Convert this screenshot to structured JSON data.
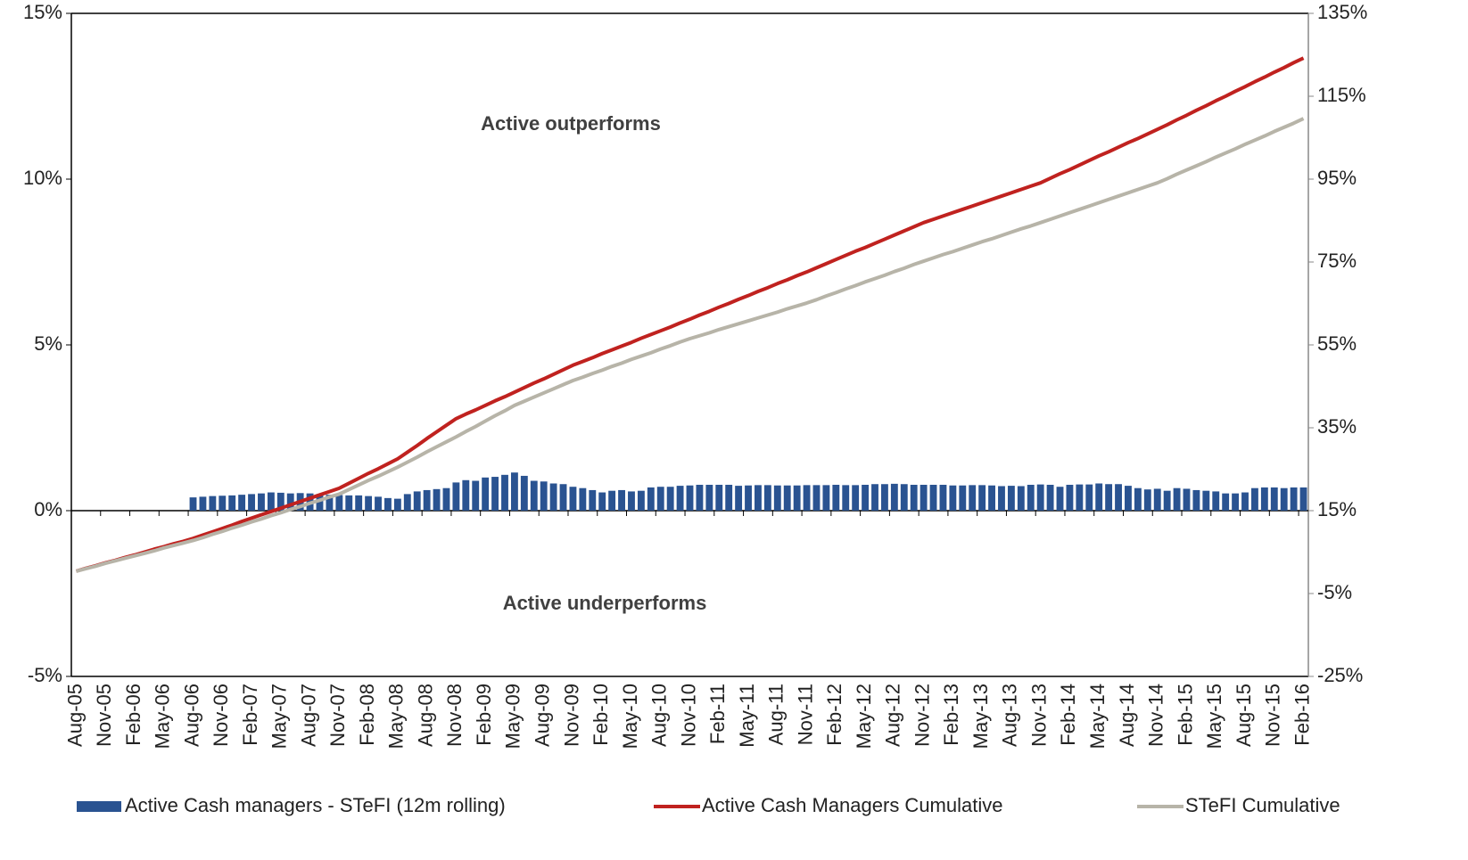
{
  "chart_data": {
    "type": "bar_line",
    "categories": [
      "Aug-05",
      null,
      null,
      "Nov-05",
      null,
      null,
      "Feb-06",
      null,
      null,
      "May-06",
      null,
      null,
      "Aug-06",
      null,
      null,
      "Nov-06",
      null,
      null,
      "Feb-07",
      null,
      null,
      "May-07",
      null,
      null,
      "Aug-07",
      null,
      null,
      "Nov-07",
      null,
      null,
      "Feb-08",
      null,
      null,
      "May-08",
      null,
      null,
      "Aug-08",
      null,
      null,
      "Nov-08",
      null,
      null,
      "Feb-09",
      null,
      null,
      "May-09",
      null,
      null,
      "Aug-09",
      null,
      null,
      "Nov-09",
      null,
      null,
      "Feb-10",
      null,
      null,
      "May-10",
      null,
      null,
      "Aug-10",
      null,
      null,
      "Nov-10",
      null,
      null,
      "Feb-11",
      null,
      null,
      "May-11",
      null,
      null,
      "Aug-11",
      null,
      null,
      "Nov-11",
      null,
      null,
      "Feb-12",
      null,
      null,
      "May-12",
      null,
      null,
      "Aug-12",
      null,
      null,
      "Nov-12",
      null,
      null,
      "Feb-13",
      null,
      null,
      "May-13",
      null,
      null,
      "Aug-13",
      null,
      null,
      "Nov-13",
      null,
      null,
      "Feb-14",
      null,
      null,
      "May-14",
      null,
      null,
      "Aug-14",
      null,
      null,
      "Nov-14",
      null,
      null,
      "Feb-15",
      null,
      null,
      "May-15",
      null,
      null,
      "Aug-15",
      null,
      null,
      "Nov-15",
      null,
      null,
      "Feb-16"
    ],
    "series": [
      {
        "name": "Active Cash managers - STeFI (12m rolling)",
        "color": "#2a5391",
        "kind": "bar",
        "values": [
          null,
          null,
          null,
          null,
          null,
          null,
          null,
          null,
          null,
          null,
          null,
          null,
          0.4,
          0.42,
          0.44,
          0.45,
          0.46,
          0.48,
          0.5,
          0.52,
          0.55,
          0.54,
          0.52,
          0.53,
          0.52,
          0.5,
          0.48,
          0.47,
          0.46,
          0.46,
          0.44,
          0.42,
          0.38,
          0.36,
          0.5,
          0.58,
          0.62,
          0.65,
          0.68,
          0.85,
          0.92,
          0.9,
          1.0,
          1.02,
          1.08,
          1.15,
          1.05,
          0.9,
          0.88,
          0.82,
          0.8,
          0.72,
          0.68,
          0.62,
          0.55,
          0.6,
          0.62,
          0.58,
          0.6,
          0.7,
          0.72,
          0.72,
          0.75,
          0.76,
          0.78,
          0.78,
          0.78,
          0.78,
          0.75,
          0.76,
          0.77,
          0.77,
          0.76,
          0.76,
          0.76,
          0.77,
          0.77,
          0.77,
          0.78,
          0.77,
          0.77,
          0.78,
          0.8,
          0.8,
          0.81,
          0.8,
          0.78,
          0.78,
          0.78,
          0.78,
          0.76,
          0.76,
          0.77,
          0.77,
          0.76,
          0.74,
          0.75,
          0.74,
          0.78,
          0.79,
          0.78,
          0.72,
          0.78,
          0.79,
          0.79,
          0.82,
          0.8,
          0.8,
          0.75,
          0.68,
          0.64,
          0.66,
          0.6,
          0.68,
          0.66,
          0.62,
          0.6,
          0.58,
          0.52,
          0.52,
          0.55,
          0.68,
          0.7,
          0.7,
          0.68,
          0.7,
          0.7
        ]
      },
      {
        "name": "Active Cash Managers Cumulative",
        "color": "#c0221f",
        "kind": "line",
        "axis": "y2",
        "values": [
          0.4,
          1.1,
          1.7,
          2.4,
          3.0,
          3.7,
          4.3,
          5.0,
          5.7,
          6.3,
          7.0,
          7.6,
          8.3,
          9.1,
          9.9,
          10.7,
          11.5,
          12.4,
          13.2,
          14.0,
          14.8,
          15.6,
          16.4,
          17.2,
          18.0,
          18.8,
          19.6,
          20.4,
          21.6,
          22.8,
          24.0,
          25.1,
          26.3,
          27.5,
          29.1,
          30.7,
          32.4,
          34.0,
          35.6,
          37.2,
          38.3,
          39.3,
          40.4,
          41.5,
          42.5,
          43.6,
          44.7,
          45.8,
          46.8,
          47.9,
          49.0,
          50.1,
          51.0,
          51.9,
          52.9,
          53.8,
          54.7,
          55.6,
          56.6,
          57.5,
          58.4,
          59.3,
          60.3,
          61.2,
          62.2,
          63.1,
          64.1,
          65.0,
          66.0,
          66.9,
          67.9,
          68.8,
          69.8,
          70.7,
          71.7,
          72.6,
          73.6,
          74.6,
          75.6,
          76.6,
          77.6,
          78.5,
          79.5,
          80.5,
          81.5,
          82.5,
          83.5,
          84.5,
          85.3,
          86.1,
          86.9,
          87.7,
          88.5,
          89.3,
          90.1,
          90.9,
          91.7,
          92.5,
          93.3,
          94.1,
          95.2,
          96.3,
          97.3,
          98.4,
          99.5,
          100.6,
          101.6,
          102.7,
          103.8,
          104.8,
          105.9,
          107.0,
          108.1,
          109.3,
          110.4,
          111.6,
          112.7,
          113.9,
          115.0,
          116.2,
          117.3,
          118.5,
          119.6,
          120.8,
          121.9,
          123.1,
          124.2
        ]
      },
      {
        "name": "STeFI Cumulative",
        "color": "#b7b4a8",
        "kind": "line",
        "axis": "y2",
        "values": [
          0.4,
          1.0,
          1.6,
          2.3,
          2.9,
          3.5,
          4.1,
          4.7,
          5.3,
          6.0,
          6.6,
          7.2,
          7.8,
          8.5,
          9.3,
          10.0,
          10.8,
          11.5,
          12.3,
          13.0,
          13.8,
          14.5,
          15.3,
          16.0,
          16.8,
          17.5,
          18.3,
          19.0,
          20.1,
          21.2,
          22.3,
          23.3,
          24.4,
          25.5,
          26.7,
          27.9,
          29.2,
          30.4,
          31.6,
          32.8,
          34.1,
          35.3,
          36.6,
          37.9,
          39.1,
          40.4,
          41.4,
          42.4,
          43.4,
          44.4,
          45.4,
          46.4,
          47.2,
          48.1,
          48.9,
          49.8,
          50.6,
          51.5,
          52.3,
          53.1,
          54.0,
          54.8,
          55.7,
          56.5,
          57.2,
          57.9,
          58.7,
          59.4,
          60.1,
          60.8,
          61.5,
          62.2,
          62.9,
          63.7,
          64.4,
          65.1,
          65.9,
          66.8,
          67.6,
          68.5,
          69.3,
          70.2,
          71.0,
          71.8,
          72.7,
          73.5,
          74.4,
          75.2,
          76.0,
          76.8,
          77.5,
          78.3,
          79.1,
          79.9,
          80.6,
          81.4,
          82.2,
          83.0,
          83.7,
          84.5,
          85.3,
          86.1,
          86.9,
          87.7,
          88.5,
          89.3,
          90.1,
          90.9,
          91.7,
          92.5,
          93.3,
          94.1,
          95.1,
          96.2,
          97.2,
          98.2,
          99.2,
          100.3,
          101.3,
          102.3,
          103.4,
          104.4,
          105.4,
          106.5,
          107.5,
          108.5,
          109.6
        ]
      }
    ],
    "ylim": [
      -5,
      15
    ],
    "yticks": [
      {
        "value": -5,
        "label": "-5%"
      },
      {
        "value": 0,
        "label": "0%"
      },
      {
        "value": 5,
        "label": "5%"
      },
      {
        "value": 10,
        "label": "10%"
      },
      {
        "value": 15,
        "label": "15%"
      }
    ],
    "y2lim": [
      -25,
      135
    ],
    "y2ticks": [
      {
        "value": -25,
        "label": "-25%"
      },
      {
        "value": -5,
        "label": "-5%"
      },
      {
        "value": 15,
        "label": "15%"
      },
      {
        "value": 35,
        "label": "35%"
      },
      {
        "value": 55,
        "label": "55%"
      },
      {
        "value": 75,
        "label": "75%"
      },
      {
        "value": 95,
        "label": "95%"
      },
      {
        "value": 115,
        "label": "115%"
      },
      {
        "value": 135,
        "label": "135%"
      }
    ],
    "annotations": [
      "Active outperforms",
      "Active underperforms"
    ],
    "legend": "bottom"
  }
}
